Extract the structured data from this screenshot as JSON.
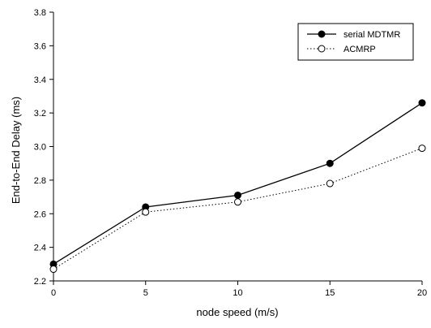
{
  "chart_data": {
    "type": "line",
    "x": [
      0,
      5,
      10,
      15,
      20
    ],
    "series": [
      {
        "name": "serial MDTMR",
        "values": [
          2.3,
          2.64,
          2.71,
          2.9,
          3.26
        ],
        "marker": "filled-circle",
        "line": "solid",
        "color": "#000000"
      },
      {
        "name": "ACMRP",
        "values": [
          2.27,
          2.61,
          2.67,
          2.78,
          2.99
        ],
        "marker": "open-circle",
        "line": "dotted",
        "color": "#000000"
      }
    ],
    "xlabel": "node speed (m/s)",
    "ylabel": "End-to-End Delay (ms)",
    "xlim": [
      0,
      20
    ],
    "ylim": [
      2.2,
      3.8
    ],
    "xticks": [
      0,
      5,
      10,
      15,
      20
    ],
    "yticks": [
      2.2,
      2.4,
      2.6,
      2.8,
      3.0,
      3.2,
      3.4,
      3.6,
      3.8
    ],
    "xtick_labels": [
      "0",
      "5",
      "10",
      "15",
      "20"
    ],
    "ytick_labels": [
      "2.2",
      "2.4",
      "2.6",
      "2.8",
      "3.0",
      "3.2",
      "3.4",
      "3.6",
      "3.8"
    ],
    "grid": false,
    "legend_position": "top-right"
  }
}
